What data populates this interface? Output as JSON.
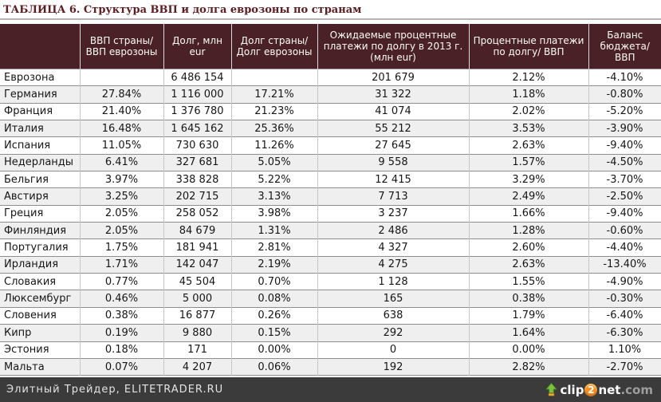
{
  "title": "ТАБЛИЦА 6. Структура ВВП и долга еврозоны по странам",
  "table": {
    "columns": [
      "",
      "ВВП страны/ ВВП еврозоны",
      "Долг, млн eur",
      "Долг страны/ Долг еврозоны",
      "Ожидаемые процентные платежи по долгу в 2013 г. (млн eur)",
      "Процентные платежи по долгу/ ВВП",
      "Баланс бюджета/ ВВП"
    ],
    "rows": [
      {
        "country": "Еврозона",
        "values": [
          "",
          "6 486 154",
          "",
          "201 679",
          "2.12%",
          "-4.10%"
        ]
      },
      {
        "country": "Германия",
        "values": [
          "27.84%",
          "1 116 000",
          "17.21%",
          "31 322",
          "1.18%",
          "-0.80%"
        ]
      },
      {
        "country": "Франция",
        "values": [
          "21.40%",
          "1 376 780",
          "21.23%",
          "41 074",
          "2.02%",
          "-5.20%"
        ]
      },
      {
        "country": "Италия",
        "values": [
          "16.48%",
          "1 645 162",
          "25.36%",
          "55 212",
          "3.53%",
          "-3.90%"
        ]
      },
      {
        "country": "Испания",
        "values": [
          "11.05%",
          "730 630",
          "11.26%",
          "27 645",
          "2.63%",
          "-9.40%"
        ]
      },
      {
        "country": "Недерланды",
        "values": [
          "6.41%",
          "327 681",
          "5.05%",
          "9 558",
          "1.57%",
          "-4.50%"
        ]
      },
      {
        "country": "Бельгия",
        "values": [
          "3.97%",
          "338 828",
          "5.22%",
          "12 415",
          "3.29%",
          "-3.70%"
        ]
      },
      {
        "country": "Австиря",
        "values": [
          "3.25%",
          "202 715",
          "3.13%",
          "7 713",
          "2.49%",
          "-2.50%"
        ]
      },
      {
        "country": "Греция",
        "values": [
          "2.05%",
          "258 052",
          "3.98%",
          "3 237",
          "1.66%",
          "-9.40%"
        ]
      },
      {
        "country": "Финляндия",
        "values": [
          "2.05%",
          "84 679",
          "1.31%",
          "2 486",
          "1.28%",
          "-0.60%"
        ]
      },
      {
        "country": "Португалия",
        "values": [
          "1.75%",
          "181 941",
          "2.81%",
          "4 327",
          "2.60%",
          "-4.40%"
        ]
      },
      {
        "country": "Ирландия",
        "values": [
          "1.71%",
          "142 047",
          "2.19%",
          "4 275",
          "2.63%",
          "-13.40%"
        ]
      },
      {
        "country": "Словакия",
        "values": [
          "0.77%",
          "45 504",
          "0.70%",
          "1 128",
          "1.55%",
          "-4.90%"
        ]
      },
      {
        "country": "Люксембург",
        "values": [
          "0.46%",
          "5 000",
          "0.08%",
          "165",
          "0.38%",
          "-0.30%"
        ]
      },
      {
        "country": "Словения",
        "values": [
          "0.38%",
          "16 877",
          "0.26%",
          "638",
          "1.79%",
          "-6.40%"
        ]
      },
      {
        "country": "Кипр",
        "values": [
          "0.19%",
          "9 880",
          "0.15%",
          "292",
          "1.64%",
          "-6.30%"
        ]
      },
      {
        "country": "Эстония",
        "values": [
          "0.18%",
          "171",
          "0.00%",
          "0",
          "0.00%",
          "1.10%"
        ]
      },
      {
        "country": "Мальта",
        "values": [
          "0.07%",
          "4 207",
          "0.06%",
          "192",
          "2.82%",
          "-2.70%"
        ]
      }
    ]
  },
  "footer": {
    "site_label": "Элитный Трейдер, ELITETRADER.RU",
    "logo": {
      "prefix": "clip",
      "badge": "2",
      "suffix": "net",
      "tld": ".com"
    }
  },
  "colors": {
    "title": "#5a1d21",
    "header_bg": "#4a2126",
    "row_alt": "#efefef",
    "footer_bg": "#3b3b3b",
    "logo_badge": "#f59120",
    "logo_arrow": "#7cc142"
  }
}
